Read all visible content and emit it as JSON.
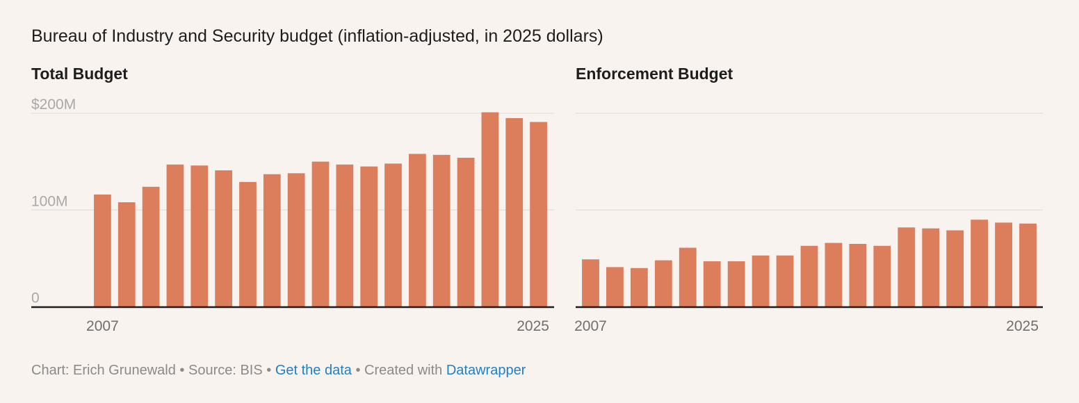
{
  "title": "Bureau of Industry and Security budget (inflation-adjusted, in 2025 dollars)",
  "colors": {
    "bar": "#dc7d5c",
    "background": "#f8f3ef",
    "grid": "#e4e2df",
    "axis": "#1d1d1d",
    "link": "#1d81c4"
  },
  "chart_data": [
    {
      "type": "bar",
      "title": "Total Budget",
      "categories": [
        "2007",
        "2008",
        "2009",
        "2010",
        "2011",
        "2012",
        "2013",
        "2014",
        "2015",
        "2016",
        "2017",
        "2018",
        "2019",
        "2020",
        "2021",
        "2022",
        "2023",
        "2024",
        "2025"
      ],
      "values": [
        116,
        108,
        124,
        147,
        146,
        141,
        129,
        137,
        138,
        150,
        147,
        145,
        148,
        158,
        157,
        154,
        201,
        195,
        191
      ],
      "unit": "million USD",
      "ylim": [
        0,
        200
      ],
      "yticks": [
        {
          "value": 0,
          "label": "0"
        },
        {
          "value": 100,
          "label": "100M"
        },
        {
          "value": 200,
          "label": "$200M"
        }
      ],
      "xtick_labels": [
        "2007",
        "2025"
      ],
      "grid": true
    },
    {
      "type": "bar",
      "title": "Enforcement Budget",
      "categories": [
        "2007",
        "2008",
        "2009",
        "2010",
        "2011",
        "2012",
        "2013",
        "2014",
        "2015",
        "2016",
        "2017",
        "2018",
        "2019",
        "2020",
        "2021",
        "2022",
        "2023",
        "2024",
        "2025"
      ],
      "values": [
        49,
        41,
        40,
        48,
        61,
        47,
        47,
        53,
        53,
        63,
        66,
        65,
        63,
        82,
        81,
        79,
        90,
        87,
        86
      ],
      "unit": "million USD",
      "ylim": [
        0,
        200
      ],
      "yticks": [
        {
          "value": 0,
          "label": ""
        },
        {
          "value": 100,
          "label": ""
        },
        {
          "value": 200,
          "label": ""
        }
      ],
      "xtick_labels": [
        "2007",
        "2025"
      ],
      "grid": true
    }
  ],
  "footer": {
    "prefix": "Chart: Erich Grunewald • Source: BIS • ",
    "link1": "Get the data",
    "middle": " • Created with ",
    "link2": "Datawrapper"
  }
}
